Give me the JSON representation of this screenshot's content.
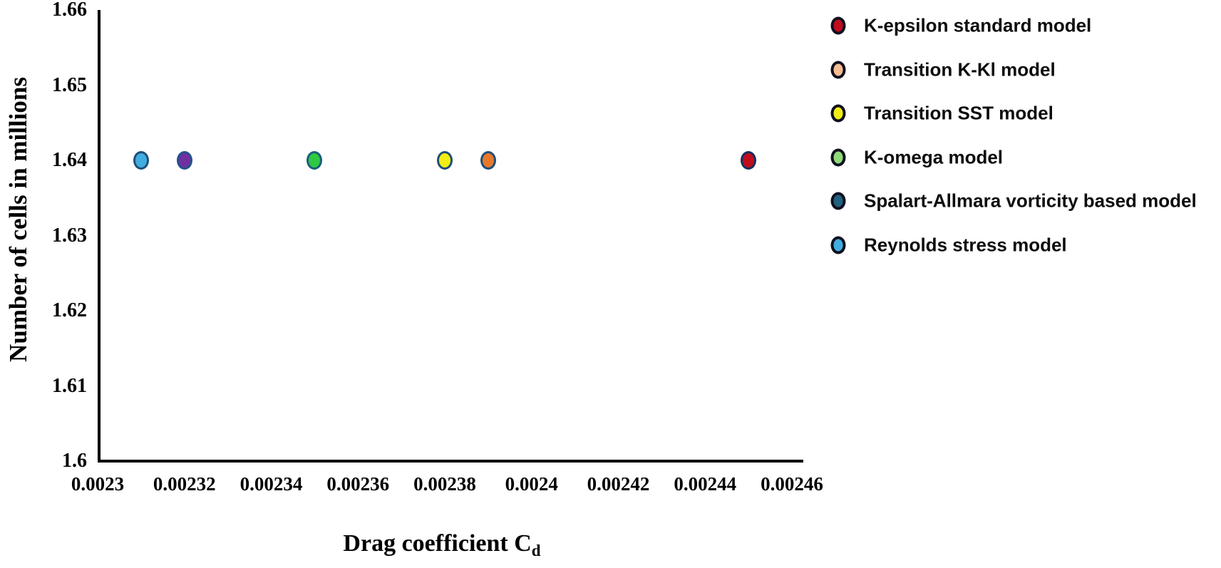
{
  "chart_data": {
    "type": "scatter",
    "title": "",
    "xlabel": "Drag coefficient C",
    "xlabel_subscript": "d",
    "ylabel": "Number of cells in millions",
    "xlim": [
      0.0023,
      0.00246
    ],
    "ylim": [
      1.6,
      1.66
    ],
    "grid": false,
    "legend_position": "right",
    "background_color": "#ffffff",
    "axis_color": "#000000",
    "x_ticks": [
      {
        "label": "0.0023",
        "value": 0.0023
      },
      {
        "label": "0.00232",
        "value": 0.00232
      },
      {
        "label": "0.00234",
        "value": 0.00234
      },
      {
        "label": "0.00236",
        "value": 0.00236
      },
      {
        "label": "0.00238",
        "value": 0.00238
      },
      {
        "label": "0.0024",
        "value": 0.0024
      },
      {
        "label": "0.00242",
        "value": 0.00242
      },
      {
        "label": "0.00244",
        "value": 0.00244
      },
      {
        "label": "0.00246",
        "value": 0.00246
      }
    ],
    "y_ticks": [
      {
        "label": "1.66",
        "value": 1.66
      },
      {
        "label": "1.65",
        "value": 1.65
      },
      {
        "label": "1.64",
        "value": 1.64
      },
      {
        "label": "1.63",
        "value": 1.63
      },
      {
        "label": "1.62",
        "value": 1.62
      },
      {
        "label": "1.61",
        "value": 1.61
      },
      {
        "label": "1.6",
        "value": 1.6
      }
    ],
    "series": [
      {
        "name": "K-epsilon standard model",
        "slug": "k-epsilon-standard-model",
        "x": 0.00245,
        "y": 1.64,
        "point_fill": "#c00c1e",
        "point_stroke": "#15305e",
        "legend_fill": "#c00c1e",
        "legend_stroke": "#10101f"
      },
      {
        "name": "Transition K-Kl model",
        "slug": "transition-k-kl-model",
        "x": 0.00239,
        "y": 1.64,
        "point_fill": "#e8782a",
        "point_stroke": "#1f4e79",
        "legend_fill": "#f6bd92",
        "legend_stroke": "#10101f"
      },
      {
        "name": "Transition SST model",
        "slug": "transition-sst-model",
        "x": 0.00238,
        "y": 1.64,
        "point_fill": "#f2ee14",
        "point_stroke": "#1f4e79",
        "legend_fill": "#f2ee14",
        "legend_stroke": "#10101f"
      },
      {
        "name": "K-omega model",
        "slug": "k-omega-model",
        "x": 0.00235,
        "y": 1.64,
        "point_fill": "#2fc944",
        "point_stroke": "#1a5f7a",
        "legend_fill": "#90d977",
        "legend_stroke": "#10101f"
      },
      {
        "name": "Spalart-Allmara vorticity based model",
        "slug": "spalart-allmara-vorticity-based-model",
        "x": 0.00232,
        "y": 1.64,
        "point_fill": "#7030a0",
        "point_stroke": "#24518e",
        "legend_fill": "#20617f",
        "legend_stroke": "#10101f"
      },
      {
        "name": "Reynolds stress model",
        "slug": "reynolds-stress-model",
        "x": 0.00231,
        "y": 1.64,
        "point_fill": "#41ade0",
        "point_stroke": "#1f4e79",
        "legend_fill": "#41ade0",
        "legend_stroke": "#10101f"
      }
    ]
  }
}
